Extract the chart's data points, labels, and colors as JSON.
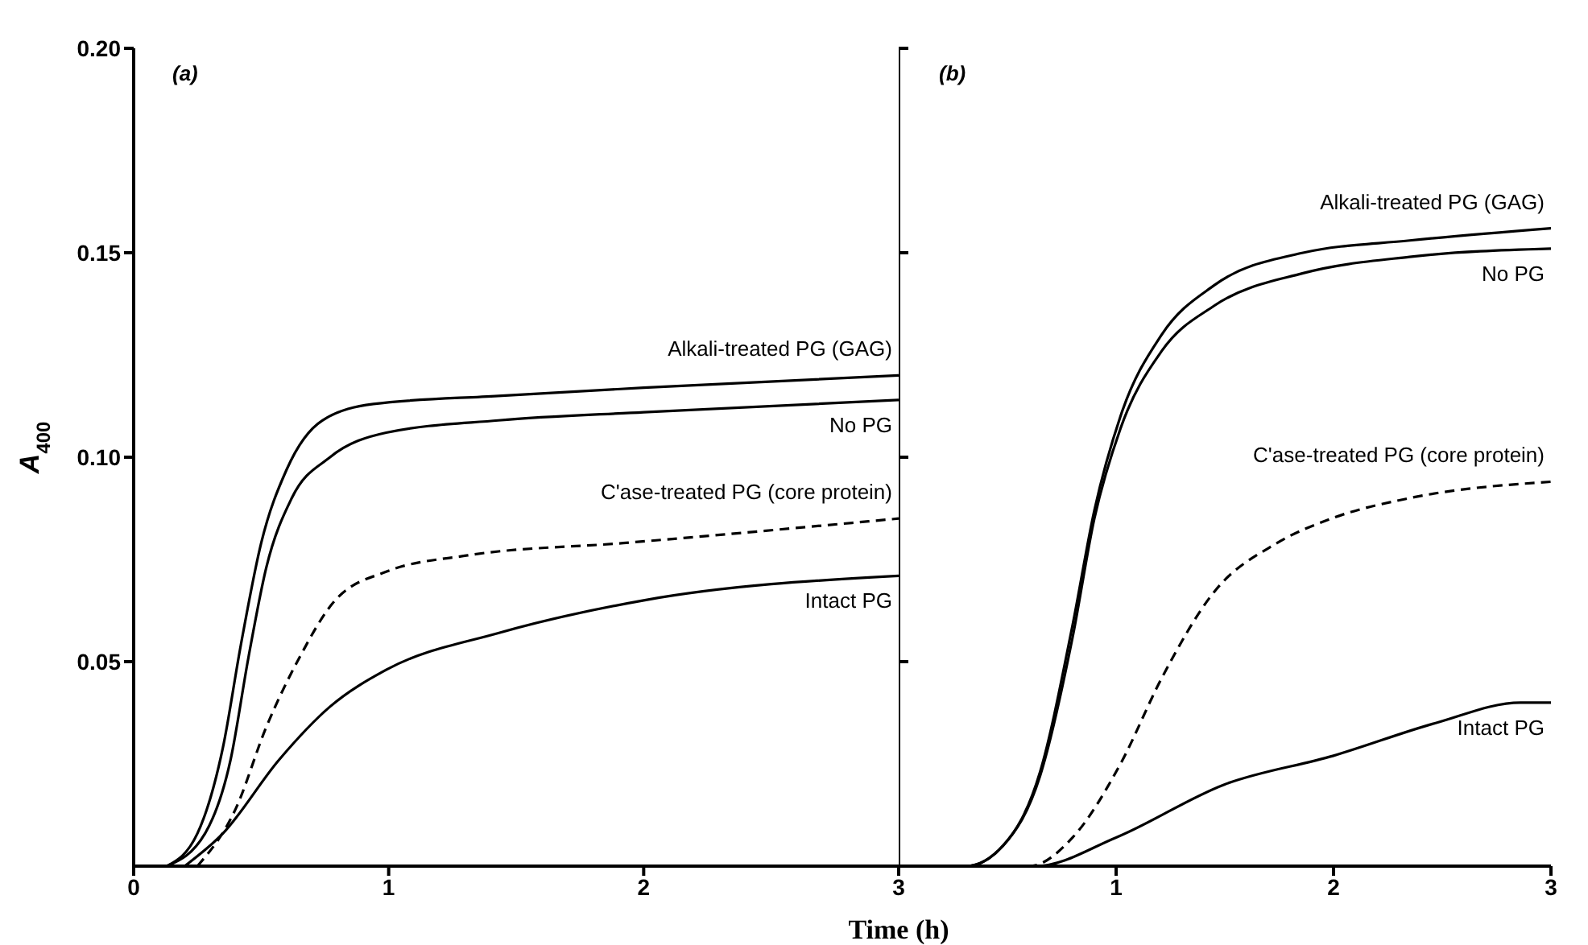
{
  "chart_data": [
    {
      "type": "line",
      "title": "(a)",
      "xlabel": "Time (h)",
      "ylabel": "A$_{400}$",
      "xlim": [
        0,
        3
      ],
      "xticks": [
        0,
        1,
        2,
        3
      ],
      "ylim": [
        0,
        0.2
      ],
      "yticks": [
        {
          "value": 0.05,
          "label": "0.05"
        },
        {
          "value": 0.1,
          "label": "0.10"
        },
        {
          "value": 0.15,
          "label": "0.15"
        },
        {
          "value": 0.2,
          "label": "0.20"
        }
      ],
      "series": [
        {
          "name": "Alkali-treated PG (GAG)",
          "color": "#000000",
          "line_style": "solid",
          "x": [
            0.13,
            0.25,
            0.35,
            0.42,
            0.5,
            0.6,
            0.74,
            0.94,
            1.43,
            2.0,
            3.0
          ],
          "values": [
            0,
            0.008,
            0.029,
            0.054,
            0.079,
            0.097,
            0.109,
            0.113,
            0.115,
            0.117,
            0.12
          ]
        },
        {
          "name": "No PG",
          "color": "#000000",
          "line_style": "solid",
          "x": [
            0.13,
            0.28,
            0.38,
            0.45,
            0.52,
            0.62,
            0.77,
            0.99,
            1.43,
            2.0,
            3.0
          ],
          "values": [
            0,
            0.008,
            0.026,
            0.051,
            0.073,
            0.09,
            0.1,
            0.106,
            0.109,
            0.111,
            0.114
          ]
        },
        {
          "name": "C'ase-treated PG (core protein)",
          "color": "#000000",
          "line_style": "dashed",
          "x": [
            0.25,
            0.4,
            0.52,
            0.65,
            0.79,
            0.99,
            1.31,
            1.92,
            3.0
          ],
          "values": [
            0,
            0.014,
            0.034,
            0.051,
            0.065,
            0.072,
            0.076,
            0.079,
            0.085
          ]
        },
        {
          "name": "Intact PG",
          "color": "#000000",
          "line_style": "solid",
          "x": [
            0.2,
            0.35,
            0.57,
            0.77,
            0.99,
            1.43,
            2.0,
            3.0
          ],
          "values": [
            0,
            0.008,
            0.026,
            0.039,
            0.048,
            0.057,
            0.065,
            0.071
          ]
        }
      ]
    },
    {
      "type": "line",
      "title": "(b)",
      "tick_labels": "x",
      "xlim": [
        0,
        3
      ],
      "xticks": [
        1,
        2,
        3
      ],
      "ylim": [
        0,
        0.2
      ],
      "yticks": [
        0.05,
        0.1,
        0.15,
        0.2
      ],
      "series": [
        {
          "name": "Alkali-treated PG (GAG)",
          "color": "#000000",
          "line_style": "solid",
          "x": [
            0,
            0.31,
            0.48,
            0.65,
            0.8,
            0.9,
            1.02,
            1.21,
            1.45,
            1.86,
            2.35,
            3.0
          ],
          "values": [
            0,
            0,
            0.005,
            0.023,
            0.059,
            0.087,
            0.11,
            0.13,
            0.142,
            0.15,
            0.153,
            0.156
          ]
        },
        {
          "name": "No PG",
          "color": "#000000",
          "line_style": "solid",
          "x": [
            0,
            0.31,
            0.48,
            0.65,
            0.8,
            0.9,
            1.02,
            1.21,
            1.45,
            1.86,
            2.35,
            3.0
          ],
          "values": [
            0,
            0,
            0.005,
            0.022,
            0.056,
            0.085,
            0.107,
            0.126,
            0.137,
            0.145,
            0.149,
            0.151
          ]
        },
        {
          "name": "C'ase-treated PG (core protein)",
          "color": "#000000",
          "line_style": "dashed",
          "x": [
            0,
            0.6,
            0.8,
            1.02,
            1.21,
            1.45,
            1.74,
            1.99,
            2.35,
            3.0
          ],
          "values": [
            0,
            0,
            0.007,
            0.025,
            0.046,
            0.067,
            0.079,
            0.085,
            0.09,
            0.094
          ]
        },
        {
          "name": "Intact PG",
          "color": "#000000",
          "line_style": "solid",
          "x": [
            0,
            0.63,
            1.0,
            1.5,
            2.0,
            2.47,
            2.86,
            3.0
          ],
          "values": [
            0,
            0,
            0.007,
            0.02,
            0.027,
            0.035,
            0.04,
            0.04
          ]
        }
      ]
    }
  ]
}
